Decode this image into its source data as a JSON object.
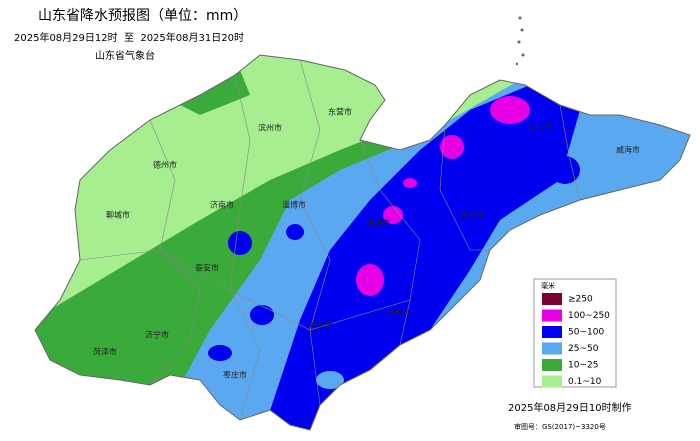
{
  "header": {
    "title": "山东省降水预报图（单位：mm）",
    "period": "2025年08月29日12时  至  2025年08月31日20时",
    "issuer": "山东省气象台"
  },
  "cities": [
    "德州市",
    "滨州市",
    "东营市",
    "烟台市",
    "威海市",
    "聊城市",
    "济南市",
    "淄博市",
    "潍坊市",
    "青岛市",
    "泰安市",
    "日照市",
    "济宁市",
    "临沂市",
    "菏泽市",
    "枣庄市"
  ],
  "legend": {
    "title": "毫米",
    "items": [
      {
        "label": "≥250",
        "color": "#7b0034"
      },
      {
        "label": "100~250",
        "color": "#e600e6"
      },
      {
        "label": "50~100",
        "color": "#0000f0"
      },
      {
        "label": "25~50",
        "color": "#5aa9f0"
      },
      {
        "label": "10~25",
        "color": "#3aaa3a"
      },
      {
        "label": "0.1~10",
        "color": "#a6ee90"
      }
    ]
  },
  "footer": {
    "made": "2025年08月29日10时制作",
    "approval": "审图号：GS(2017)~3320号"
  }
}
